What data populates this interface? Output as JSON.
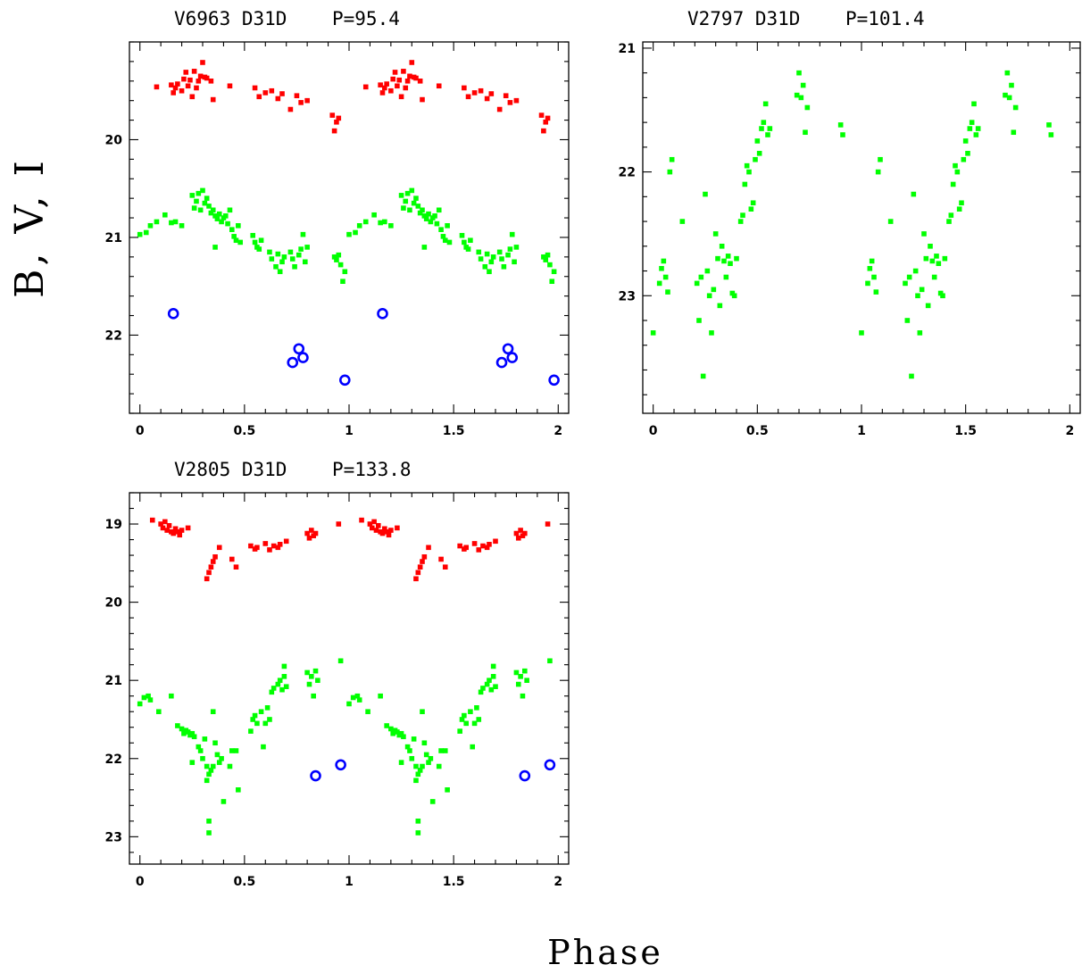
{
  "figure": {
    "ylabel": "B, V, I",
    "xlabel": "Phase"
  },
  "colors": {
    "I": "#ff0000",
    "V": "#00ff00",
    "B": "#0000ff"
  },
  "chart_data": [
    {
      "type": "scatter",
      "title": "V6963 D31D    P=95.4",
      "xlim": [
        -0.05,
        2.05
      ],
      "ylim": [
        22.8,
        19.0
      ],
      "xticks": [
        0,
        0.5,
        1,
        1.5,
        2
      ],
      "xtick_labels": [
        "0",
        "0.5",
        "1",
        "1.5",
        "2"
      ],
      "yticks": [
        20,
        21,
        22
      ],
      "ytick_labels": [
        "20",
        "21",
        "22"
      ],
      "series": [
        {
          "band": "I",
          "marker": "square",
          "points": [
            [
              0.08,
              19.46
            ],
            [
              0.15,
              19.44
            ],
            [
              0.16,
              19.52
            ],
            [
              0.17,
              19.47
            ],
            [
              0.18,
              19.43
            ],
            [
              0.2,
              19.5
            ],
            [
              0.21,
              19.38
            ],
            [
              0.22,
              19.31
            ],
            [
              0.23,
              19.45
            ],
            [
              0.24,
              19.39
            ],
            [
              0.25,
              19.56
            ],
            [
              0.26,
              19.3
            ],
            [
              0.27,
              19.47
            ],
            [
              0.28,
              19.4
            ],
            [
              0.29,
              19.35
            ],
            [
              0.3,
              19.21
            ],
            [
              0.31,
              19.36
            ],
            [
              0.32,
              19.37
            ],
            [
              0.34,
              19.4
            ],
            [
              0.35,
              19.59
            ],
            [
              0.43,
              19.45
            ],
            [
              0.55,
              19.47
            ],
            [
              0.57,
              19.56
            ],
            [
              0.6,
              19.52
            ],
            [
              0.63,
              19.5
            ],
            [
              0.66,
              19.58
            ],
            [
              0.68,
              19.53
            ],
            [
              0.72,
              19.69
            ],
            [
              0.75,
              19.55
            ],
            [
              0.77,
              19.62
            ],
            [
              0.8,
              19.6
            ],
            [
              0.92,
              19.75
            ],
            [
              0.93,
              19.91
            ],
            [
              0.94,
              19.82
            ],
            [
              0.95,
              19.78
            ]
          ]
        },
        {
          "band": "V",
          "marker": "square",
          "points": [
            [
              0.0,
              20.97
            ],
            [
              0.03,
              20.95
            ],
            [
              0.05,
              20.88
            ],
            [
              0.08,
              20.84
            ],
            [
              0.12,
              20.77
            ],
            [
              0.15,
              20.85
            ],
            [
              0.17,
              20.84
            ],
            [
              0.2,
              20.88
            ],
            [
              0.25,
              20.57
            ],
            [
              0.26,
              20.7
            ],
            [
              0.27,
              20.63
            ],
            [
              0.28,
              20.55
            ],
            [
              0.29,
              20.72
            ],
            [
              0.3,
              20.52
            ],
            [
              0.31,
              20.65
            ],
            [
              0.32,
              20.6
            ],
            [
              0.33,
              20.68
            ],
            [
              0.34,
              20.75
            ],
            [
              0.35,
              20.72
            ],
            [
              0.36,
              20.78
            ],
            [
              0.37,
              20.81
            ],
            [
              0.38,
              20.76
            ],
            [
              0.39,
              20.84
            ],
            [
              0.4,
              20.8
            ],
            [
              0.41,
              20.78
            ],
            [
              0.42,
              20.86
            ],
            [
              0.43,
              20.72
            ],
            [
              0.44,
              20.92
            ],
            [
              0.45,
              20.99
            ],
            [
              0.46,
              21.03
            ],
            [
              0.47,
              20.88
            ],
            [
              0.48,
              21.05
            ],
            [
              0.36,
              21.1
            ],
            [
              0.54,
              20.98
            ],
            [
              0.55,
              21.05
            ],
            [
              0.56,
              21.1
            ],
            [
              0.57,
              21.12
            ],
            [
              0.58,
              21.03
            ],
            [
              0.62,
              21.15
            ],
            [
              0.63,
              21.22
            ],
            [
              0.65,
              21.3
            ],
            [
              0.66,
              21.17
            ],
            [
              0.67,
              21.35
            ],
            [
              0.68,
              21.25
            ],
            [
              0.69,
              21.2
            ],
            [
              0.72,
              21.15
            ],
            [
              0.73,
              21.22
            ],
            [
              0.74,
              21.3
            ],
            [
              0.76,
              21.18
            ],
            [
              0.77,
              21.12
            ],
            [
              0.78,
              20.97
            ],
            [
              0.79,
              21.25
            ],
            [
              0.8,
              21.1
            ],
            [
              0.93,
              21.2
            ],
            [
              0.94,
              21.23
            ],
            [
              0.95,
              21.18
            ],
            [
              0.96,
              21.28
            ],
            [
              0.97,
              21.45
            ],
            [
              0.98,
              21.35
            ]
          ]
        },
        {
          "band": "B",
          "marker": "open-circle",
          "points": [
            [
              0.16,
              21.78
            ],
            [
              0.73,
              22.28
            ],
            [
              0.76,
              22.14
            ],
            [
              0.78,
              22.23
            ],
            [
              0.98,
              22.46
            ]
          ]
        }
      ]
    },
    {
      "type": "scatter",
      "title": "V2797 D31D    P=101.4",
      "xlim": [
        -0.05,
        2.05
      ],
      "ylim": [
        23.95,
        20.95
      ],
      "xticks": [
        0,
        0.5,
        1,
        1.5,
        2
      ],
      "xtick_labels": [
        "0",
        "0.5",
        "1",
        "1.5",
        "2"
      ],
      "yticks": [
        21,
        22,
        23
      ],
      "ytick_labels": [
        "21",
        "22",
        "23"
      ],
      "series": [
        {
          "band": "V",
          "marker": "square",
          "points": [
            [
              0.0,
              23.3
            ],
            [
              0.03,
              22.9
            ],
            [
              0.04,
              22.78
            ],
            [
              0.05,
              22.72
            ],
            [
              0.06,
              22.85
            ],
            [
              0.07,
              22.97
            ],
            [
              0.08,
              22.0
            ],
            [
              0.09,
              21.9
            ],
            [
              0.14,
              22.4
            ],
            [
              0.21,
              22.9
            ],
            [
              0.22,
              23.2
            ],
            [
              0.23,
              22.85
            ],
            [
              0.24,
              23.65
            ],
            [
              0.25,
              22.18
            ],
            [
              0.26,
              22.8
            ],
            [
              0.27,
              23.0
            ],
            [
              0.28,
              23.3
            ],
            [
              0.29,
              22.95
            ],
            [
              0.3,
              22.5
            ],
            [
              0.31,
              22.7
            ],
            [
              0.32,
              23.08
            ],
            [
              0.33,
              22.6
            ],
            [
              0.34,
              22.72
            ],
            [
              0.35,
              22.85
            ],
            [
              0.36,
              22.68
            ],
            [
              0.37,
              22.74
            ],
            [
              0.38,
              22.98
            ],
            [
              0.39,
              23.0
            ],
            [
              0.4,
              22.7
            ],
            [
              0.42,
              22.4
            ],
            [
              0.43,
              22.35
            ],
            [
              0.44,
              22.1
            ],
            [
              0.45,
              21.95
            ],
            [
              0.46,
              22.0
            ],
            [
              0.47,
              22.3
            ],
            [
              0.48,
              22.25
            ],
            [
              0.49,
              21.9
            ],
            [
              0.5,
              21.75
            ],
            [
              0.51,
              21.85
            ],
            [
              0.52,
              21.65
            ],
            [
              0.53,
              21.6
            ],
            [
              0.54,
              21.45
            ],
            [
              0.55,
              21.7
            ],
            [
              0.56,
              21.65
            ],
            [
              0.69,
              21.38
            ],
            [
              0.7,
              21.2
            ],
            [
              0.71,
              21.4
            ],
            [
              0.72,
              21.3
            ],
            [
              0.73,
              21.68
            ],
            [
              0.74,
              21.48
            ],
            [
              0.9,
              21.62
            ],
            [
              0.91,
              21.7
            ]
          ]
        }
      ]
    },
    {
      "type": "scatter",
      "title": "V2805 D31D    P=133.8",
      "xlim": [
        -0.05,
        2.05
      ],
      "ylim": [
        23.35,
        18.6
      ],
      "xticks": [
        0,
        0.5,
        1,
        1.5,
        2
      ],
      "xtick_labels": [
        "0",
        "0.5",
        "1",
        "1.5",
        "2"
      ],
      "yticks": [
        19,
        20,
        21,
        22,
        23
      ],
      "ytick_labels": [
        "19",
        "20",
        "21",
        "22",
        "23"
      ],
      "series": [
        {
          "band": "I",
          "marker": "square",
          "points": [
            [
              0.06,
              18.95
            ],
            [
              0.1,
              19.0
            ],
            [
              0.11,
              19.05
            ],
            [
              0.12,
              18.97
            ],
            [
              0.13,
              19.08
            ],
            [
              0.14,
              19.02
            ],
            [
              0.15,
              19.1
            ],
            [
              0.16,
              19.12
            ],
            [
              0.17,
              19.06
            ],
            [
              0.18,
              19.1
            ],
            [
              0.19,
              19.14
            ],
            [
              0.2,
              19.08
            ],
            [
              0.23,
              19.05
            ],
            [
              0.32,
              19.7
            ],
            [
              0.33,
              19.62
            ],
            [
              0.34,
              19.55
            ],
            [
              0.35,
              19.48
            ],
            [
              0.36,
              19.42
            ],
            [
              0.38,
              19.3
            ],
            [
              0.44,
              19.45
            ],
            [
              0.46,
              19.55
            ],
            [
              0.53,
              19.28
            ],
            [
              0.55,
              19.32
            ],
            [
              0.56,
              19.3
            ],
            [
              0.6,
              19.25
            ],
            [
              0.62,
              19.33
            ],
            [
              0.64,
              19.28
            ],
            [
              0.66,
              19.3
            ],
            [
              0.67,
              19.26
            ],
            [
              0.7,
              19.22
            ],
            [
              0.8,
              19.12
            ],
            [
              0.81,
              19.18
            ],
            [
              0.82,
              19.08
            ],
            [
              0.83,
              19.15
            ],
            [
              0.84,
              19.12
            ],
            [
              0.95,
              19.0
            ]
          ]
        },
        {
          "band": "V",
          "marker": "square",
          "points": [
            [
              0.0,
              21.3
            ],
            [
              0.02,
              21.22
            ],
            [
              0.04,
              21.2
            ],
            [
              0.05,
              21.25
            ],
            [
              0.09,
              21.4
            ],
            [
              0.15,
              21.2
            ],
            [
              0.18,
              21.58
            ],
            [
              0.2,
              21.62
            ],
            [
              0.21,
              21.68
            ],
            [
              0.22,
              21.64
            ],
            [
              0.23,
              21.66
            ],
            [
              0.24,
              21.7
            ],
            [
              0.25,
              21.68
            ],
            [
              0.26,
              21.72
            ],
            [
              0.25,
              22.05
            ],
            [
              0.28,
              21.85
            ],
            [
              0.29,
              21.9
            ],
            [
              0.3,
              22.0
            ],
            [
              0.31,
              21.75
            ],
            [
              0.32,
              22.1
            ],
            [
              0.33,
              22.2
            ],
            [
              0.34,
              22.15
            ],
            [
              0.32,
              22.28
            ],
            [
              0.33,
              22.8
            ],
            [
              0.33,
              22.95
            ],
            [
              0.35,
              22.1
            ],
            [
              0.36,
              21.8
            ],
            [
              0.37,
              21.95
            ],
            [
              0.38,
              22.05
            ],
            [
              0.39,
              22.0
            ],
            [
              0.4,
              22.55
            ],
            [
              0.35,
              21.4
            ],
            [
              0.43,
              22.1
            ],
            [
              0.44,
              21.9
            ],
            [
              0.46,
              21.9
            ],
            [
              0.47,
              22.4
            ],
            [
              0.53,
              21.65
            ],
            [
              0.54,
              21.5
            ],
            [
              0.55,
              21.45
            ],
            [
              0.56,
              21.55
            ],
            [
              0.58,
              21.4
            ],
            [
              0.59,
              21.85
            ],
            [
              0.6,
              21.55
            ],
            [
              0.61,
              21.35
            ],
            [
              0.62,
              21.5
            ],
            [
              0.63,
              21.15
            ],
            [
              0.64,
              21.1
            ],
            [
              0.66,
              21.05
            ],
            [
              0.67,
              21.0
            ],
            [
              0.68,
              21.12
            ],
            [
              0.69,
              20.95
            ],
            [
              0.7,
              21.08
            ],
            [
              0.69,
              20.82
            ],
            [
              0.8,
              20.9
            ],
            [
              0.81,
              21.05
            ],
            [
              0.82,
              20.95
            ],
            [
              0.83,
              21.2
            ],
            [
              0.84,
              20.88
            ],
            [
              0.85,
              21.0
            ],
            [
              0.96,
              20.75
            ]
          ]
        },
        {
          "band": "B",
          "marker": "open-circle",
          "points": [
            [
              0.84,
              22.22
            ],
            [
              0.96,
              22.08
            ]
          ]
        }
      ]
    }
  ]
}
